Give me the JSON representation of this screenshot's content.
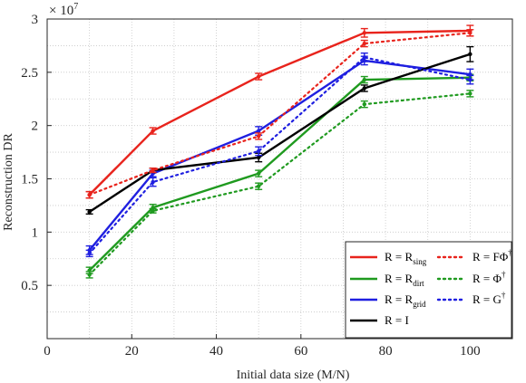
{
  "chart_data": {
    "type": "line",
    "xlabel": "Initial data size (M/N)",
    "ylabel": "Reconstruction DR",
    "y_multiplier": "× 10",
    "y_multiplier_exp": "7",
    "xlim": [
      0,
      110
    ],
    "ylim": [
      0,
      3
    ],
    "x_ticks": [
      "0",
      "20",
      "40",
      "60",
      "80",
      "100"
    ],
    "y_ticks": [
      "0.5",
      "1",
      "1.5",
      "2",
      "2.5",
      "3"
    ],
    "grid": true,
    "legend_position": "bottom-right",
    "x": [
      10,
      25,
      50,
      75,
      100
    ],
    "series": [
      {
        "name": "R = R",
        "subscript": "sing",
        "superscript": "",
        "color": "#e8231c",
        "style": "solid",
        "values": [
          1.35,
          1.95,
          2.46,
          2.87,
          2.89
        ],
        "errors": [
          0.03,
          0.03,
          0.03,
          0.04,
          0.05
        ]
      },
      {
        "name": "R = R",
        "subscript": "dirt",
        "superscript": "",
        "color": "#1f9a1f",
        "style": "solid",
        "values": [
          0.64,
          1.23,
          1.55,
          2.43,
          2.45
        ],
        "errors": [
          0.03,
          0.03,
          0.03,
          0.03,
          0.03
        ]
      },
      {
        "name": "R = R",
        "subscript": "grid",
        "superscript": "",
        "color": "#1f1fe0",
        "style": "solid",
        "values": [
          0.83,
          1.55,
          1.95,
          2.61,
          2.48
        ],
        "errors": [
          0.04,
          0.03,
          0.04,
          0.04,
          0.05
        ]
      },
      {
        "name": "R = I",
        "subscript": "",
        "superscript": "",
        "color": "#000000",
        "style": "solid",
        "values": [
          1.19,
          1.58,
          1.7,
          2.35,
          2.67
        ],
        "errors": [
          0.02,
          0.02,
          0.04,
          0.03,
          0.07
        ]
      },
      {
        "name": "R = FΦ",
        "subscript": "",
        "superscript": "†",
        "color": "#e8231c",
        "style": "dotted",
        "values": [
          1.35,
          1.58,
          1.9,
          2.77,
          2.87
        ],
        "errors": [
          0.03,
          0.02,
          0.03,
          0.03,
          0.03
        ]
      },
      {
        "name": "R = Φ",
        "subscript": "",
        "superscript": "†",
        "color": "#1f9a1f",
        "style": "dotted",
        "values": [
          0.6,
          1.2,
          1.43,
          2.2,
          2.3
        ],
        "errors": [
          0.03,
          0.02,
          0.03,
          0.03,
          0.03
        ]
      },
      {
        "name": "R = G",
        "subscript": "",
        "superscript": "†",
        "color": "#1f1fe0",
        "style": "dotted",
        "values": [
          0.8,
          1.47,
          1.76,
          2.64,
          2.43
        ],
        "errors": [
          0.03,
          0.04,
          0.04,
          0.04,
          0.04
        ]
      }
    ]
  }
}
